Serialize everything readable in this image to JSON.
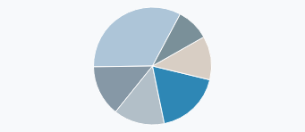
{
  "chart_data": {
    "type": "pie",
    "values": [
      0.33,
      0.14,
      0.14,
      0.18,
      0.12,
      0.09
    ],
    "colors": [
      "#adc5d8",
      "#8698a6",
      "#b2bfc8",
      "#2e87b5",
      "#d8cec4",
      "#7a9099"
    ]
  }
}
